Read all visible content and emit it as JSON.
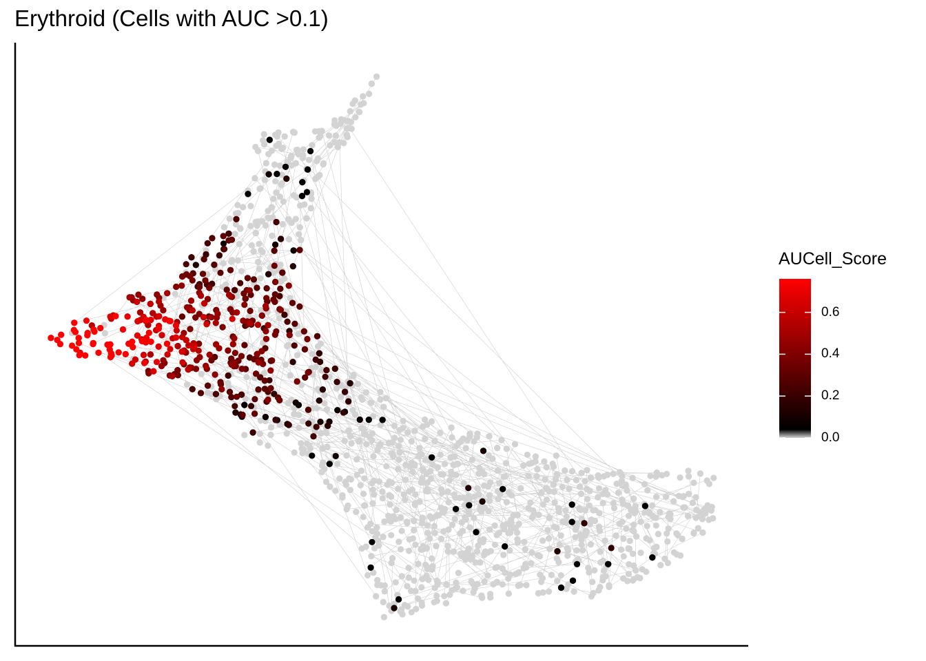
{
  "chart_data": {
    "type": "scatter",
    "title": "Erythroid (Cells with AUC >0.1)",
    "xlabel": "",
    "ylabel": "",
    "axes_ticks": false,
    "grid": false,
    "legend": {
      "title": "AUCell_Score",
      "placement": "right",
      "type": "colorbar",
      "range": [
        0,
        0.76
      ],
      "ticks": [
        {
          "value": 0.0,
          "label": "0.0"
        },
        {
          "value": 0.2,
          "label": "0.2"
        },
        {
          "value": 0.4,
          "label": "0.4"
        },
        {
          "value": 0.6,
          "label": "0.6"
        }
      ],
      "color_stops": [
        {
          "value": 0.0,
          "color": "#d3d3d3"
        },
        {
          "value": 0.04,
          "color": "#000000"
        },
        {
          "value": 0.76,
          "color": "#ff0000"
        }
      ]
    },
    "point_style": {
      "inactive_color": "#d3d3d3",
      "edge_color": "#bdbdbd"
    }
  }
}
